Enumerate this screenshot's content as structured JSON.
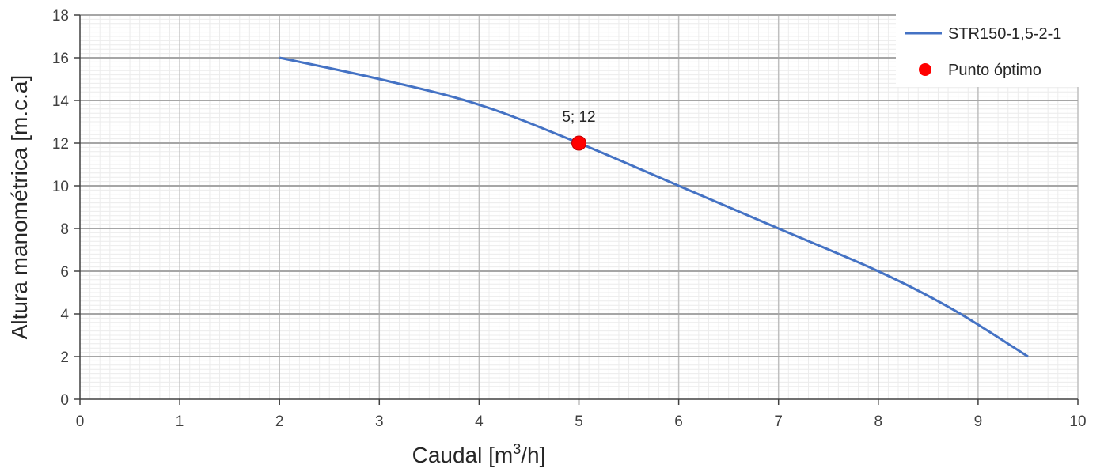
{
  "chart_data": {
    "type": "line",
    "xlabel_main": "Caudal [m",
    "xlabel_sup": "3",
    "xlabel_tail": "/h]",
    "ylabel": "Altura manométrica [m.c.a]",
    "xlim": [
      0,
      10
    ],
    "ylim": [
      0,
      18
    ],
    "x_ticks": [
      "0",
      "1",
      "2",
      "3",
      "4",
      "5",
      "6",
      "7",
      "8",
      "9",
      "10"
    ],
    "y_ticks": [
      "0",
      "2",
      "4",
      "6",
      "8",
      "10",
      "12",
      "14",
      "16",
      "18"
    ],
    "grid": "major and minor",
    "legend_position": "top-right",
    "series": [
      {
        "name": "STR150-1,5-2-1",
        "color": "#4472c4",
        "x": [
          2,
          3,
          4,
          5,
          6,
          7,
          8,
          8.75,
          9.5
        ],
        "y": [
          16,
          15,
          13.8,
          12,
          10,
          8,
          6,
          4.2,
          2
        ]
      }
    ],
    "points": [
      {
        "name": "Punto óptimo",
        "color": "#ff0000",
        "x": 5,
        "y": 12,
        "label": "5; 12"
      }
    ]
  }
}
